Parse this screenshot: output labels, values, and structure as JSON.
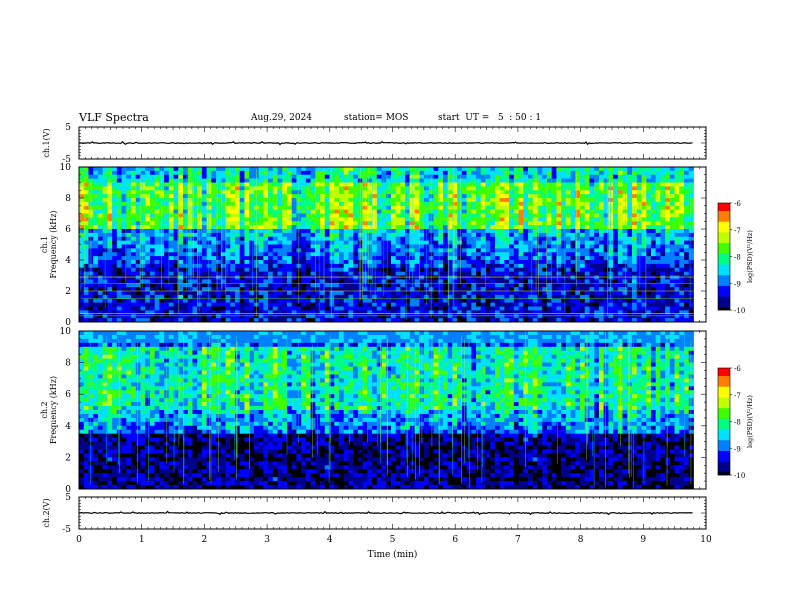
{
  "header": {
    "title": "VLF Spectra",
    "date": "Aug.29, 2024",
    "station": "station= MOS",
    "start": "start  UT =   5  : 50 : 1"
  },
  "chart_data": [
    {
      "type": "line",
      "panel": "ch1-waveform",
      "ylabel": "ch.1(V)",
      "ylim": [
        -5,
        5
      ],
      "yticks": [
        "5",
        "-5"
      ],
      "xlim": [
        0,
        10
      ],
      "series": [
        {
          "x": [
            0,
            9.8
          ],
          "values": [
            0,
            0
          ]
        }
      ]
    },
    {
      "type": "heatmap",
      "panel": "ch1-spectrogram",
      "ylabel": "ch.1\nFrequency (kHz)",
      "ylim": [
        0,
        10
      ],
      "yticks": [
        0,
        2,
        4,
        6,
        8,
        10
      ],
      "xlim": [
        0,
        10
      ],
      "data_xmax": 9.8,
      "colorbar": {
        "label": "log(PSD)(V²/Hz)",
        "range": [
          -10,
          -6
        ],
        "ticks": [
          "-6",
          "-7",
          "-8",
          "-9",
          "-10"
        ]
      },
      "band_peak": [
        6,
        9
      ]
    },
    {
      "type": "heatmap",
      "panel": "ch2-spectrogram",
      "ylabel": "ch.2\nFrequency (kHz)",
      "ylim": [
        0,
        10
      ],
      "yticks": [
        0,
        2,
        4,
        6,
        8,
        10
      ],
      "xlim": [
        0,
        10
      ],
      "data_xmax": 9.8,
      "colorbar": {
        "label": "log(PSD)(V²/Hz)",
        "range": [
          -10,
          -6
        ],
        "ticks": [
          "-6",
          "-7",
          "-8",
          "-9",
          "-10"
        ]
      },
      "band_peak": [
        5,
        9
      ]
    },
    {
      "type": "line",
      "panel": "ch2-waveform",
      "ylabel": "ch.2(V)",
      "ylim": [
        -5,
        5
      ],
      "yticks": [
        "5",
        "-5"
      ],
      "xlim": [
        0,
        10
      ],
      "xlabel": "Time  (min)",
      "xticks": [
        0,
        1,
        2,
        3,
        4,
        5,
        6,
        7,
        8,
        9,
        10
      ],
      "series": [
        {
          "x": [
            0,
            9.8
          ],
          "values": [
            0,
            0
          ]
        }
      ]
    }
  ],
  "colors": {
    "colormap": [
      "#000000",
      "#00008b",
      "#0000ff",
      "#0080ff",
      "#00e0ff",
      "#00ff80",
      "#40ff00",
      "#c0ff00",
      "#ffff00",
      "#ff8000",
      "#ff0000"
    ],
    "axes": "#000000",
    "trace": "#000000"
  }
}
